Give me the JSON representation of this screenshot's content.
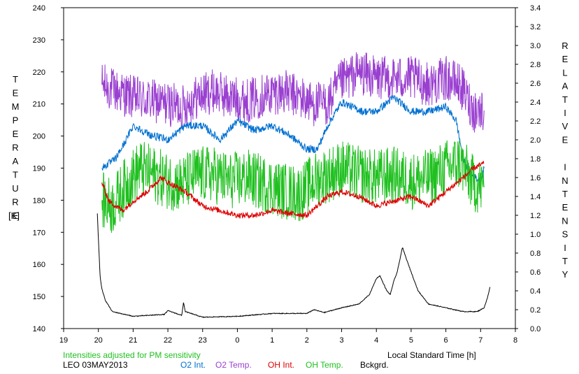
{
  "chart_data": {
    "type": "line",
    "title": "",
    "xlabel": "Local Standard Time [h]",
    "ylabel_left": "TEMPERATURE",
    "ylabel_left_unit": "[K]",
    "ylabel_right": "RELATIVE INTENSITY",
    "xlim": [
      19,
      32
    ],
    "ylim_left": [
      140,
      240
    ],
    "ylim_right": [
      0.0,
      3.4
    ],
    "x_ticks": [
      19,
      20,
      21,
      22,
      23,
      24,
      25,
      26,
      27,
      28,
      29,
      30,
      31,
      32
    ],
    "x_tick_labels": [
      "19",
      "20",
      "21",
      "22",
      "23",
      "0",
      "1",
      "2",
      "3",
      "4",
      "5",
      "6",
      "7",
      "8"
    ],
    "y_left_ticks": [
      140,
      150,
      160,
      170,
      180,
      190,
      200,
      210,
      220,
      230,
      240
    ],
    "y_right_ticks": [
      "0.0",
      "0.2",
      "0.4",
      "0.6",
      "0.8",
      "1.0",
      "1.2",
      "1.4",
      "1.6",
      "1.8",
      "2.0",
      "2.2",
      "2.4",
      "2.6",
      "2.8",
      "3.0",
      "3.2",
      "3.4"
    ],
    "note": "Intensities adjusted for PM sensitivity",
    "station": "LEO 03MAY2013",
    "legend": [
      {
        "name": "O2 Int.",
        "color": "#0070d0"
      },
      {
        "name": "O2 Temp.",
        "color": "#9a40d0"
      },
      {
        "name": "OH Int.",
        "color": "#dd0000"
      },
      {
        "name": "OH Temp.",
        "color": "#20c020"
      },
      {
        "name": "Bckgrd.",
        "color": "#000000"
      }
    ],
    "series": [
      {
        "name": "O2 Temp.",
        "axis": "left",
        "color": "#9a40d0",
        "noise": 7,
        "x": [
          20.1,
          20.5,
          21.0,
          21.5,
          22.0,
          22.4,
          22.8,
          23.3,
          23.8,
          24.3,
          24.8,
          25.3,
          25.8,
          26.2,
          26.6,
          27.0,
          27.5,
          28.0,
          28.5,
          29.0,
          29.5,
          30.0,
          30.4,
          30.8,
          31.1
        ],
        "y": [
          216,
          214,
          212,
          211,
          210,
          209,
          212,
          214,
          212,
          211,
          213,
          214,
          212,
          210,
          210,
          217,
          220,
          218,
          218,
          218,
          216,
          218,
          216,
          208,
          208
        ]
      },
      {
        "name": "O2 Int.",
        "axis": "right",
        "color": "#0070d0",
        "noise": 0.04,
        "x": [
          20.1,
          20.5,
          20.8,
          21.0,
          21.5,
          22.0,
          22.5,
          23.0,
          23.5,
          24.0,
          24.5,
          25.0,
          25.5,
          26.0,
          26.3,
          26.6,
          27.0,
          27.3,
          27.6,
          28.0,
          28.5,
          29.0,
          29.5,
          30.0,
          30.3,
          30.5,
          30.7,
          31.0,
          31.1
        ],
        "y": [
          1.7,
          1.8,
          2.0,
          2.15,
          2.05,
          2.0,
          2.15,
          2.15,
          2.0,
          2.2,
          2.1,
          2.15,
          2.05,
          1.9,
          1.9,
          2.15,
          2.4,
          2.35,
          2.3,
          2.3,
          2.45,
          2.3,
          2.3,
          2.35,
          2.2,
          1.8,
          1.65,
          1.55,
          1.7
        ]
      },
      {
        "name": "OH Temp.",
        "axis": "left",
        "color": "#20c020",
        "noise": 9,
        "x": [
          20.1,
          20.4,
          20.8,
          21.2,
          21.6,
          22.0,
          22.4,
          22.8,
          23.3,
          23.8,
          24.3,
          24.8,
          25.3,
          25.8,
          26.2,
          26.6,
          27.0,
          27.5,
          28.0,
          28.5,
          29.0,
          29.5,
          30.0,
          30.4,
          30.8,
          31.1
        ],
        "y": [
          180,
          178,
          185,
          190,
          188,
          186,
          185,
          188,
          188,
          186,
          187,
          185,
          183,
          182,
          186,
          188,
          190,
          188,
          187,
          188,
          186,
          187,
          190,
          192,
          185,
          184
        ]
      },
      {
        "name": "OH Int.",
        "axis": "right",
        "color": "#dd0000",
        "noise": 0.03,
        "x": [
          20.1,
          20.3,
          20.7,
          21.0,
          21.4,
          21.8,
          22.0,
          22.5,
          23.0,
          23.5,
          24.0,
          24.5,
          25.0,
          25.5,
          26.0,
          26.3,
          26.6,
          27.0,
          27.5,
          28.0,
          28.5,
          29.0,
          29.5,
          30.0,
          30.5,
          30.8,
          31.1
        ],
        "y": [
          1.55,
          1.35,
          1.25,
          1.35,
          1.45,
          1.6,
          1.55,
          1.45,
          1.3,
          1.25,
          1.2,
          1.2,
          1.25,
          1.22,
          1.2,
          1.3,
          1.4,
          1.45,
          1.4,
          1.3,
          1.35,
          1.4,
          1.3,
          1.45,
          1.6,
          1.7,
          1.75
        ]
      },
      {
        "name": "Bckgrd.",
        "axis": "right",
        "color": "#000000",
        "noise": 0.004,
        "x": [
          19.97,
          20.0,
          20.05,
          20.1,
          20.2,
          20.4,
          21.0,
          21.9,
          22.0,
          22.4,
          22.45,
          22.5,
          23.0,
          24.0,
          25.0,
          26.0,
          26.2,
          26.5,
          27.0,
          27.5,
          27.8,
          28.0,
          28.1,
          28.3,
          28.4,
          28.5,
          28.6,
          28.75,
          28.9,
          29.2,
          29.5,
          30.0,
          30.5,
          30.9,
          31.0,
          31.1,
          31.2,
          31.27
        ],
        "y": [
          1.22,
          0.95,
          0.55,
          0.42,
          0.3,
          0.18,
          0.13,
          0.15,
          0.19,
          0.14,
          0.28,
          0.18,
          0.12,
          0.13,
          0.16,
          0.16,
          0.2,
          0.17,
          0.22,
          0.26,
          0.36,
          0.53,
          0.56,
          0.4,
          0.36,
          0.5,
          0.6,
          0.86,
          0.7,
          0.4,
          0.26,
          0.22,
          0.18,
          0.18,
          0.2,
          0.22,
          0.33,
          0.44
        ]
      }
    ]
  }
}
